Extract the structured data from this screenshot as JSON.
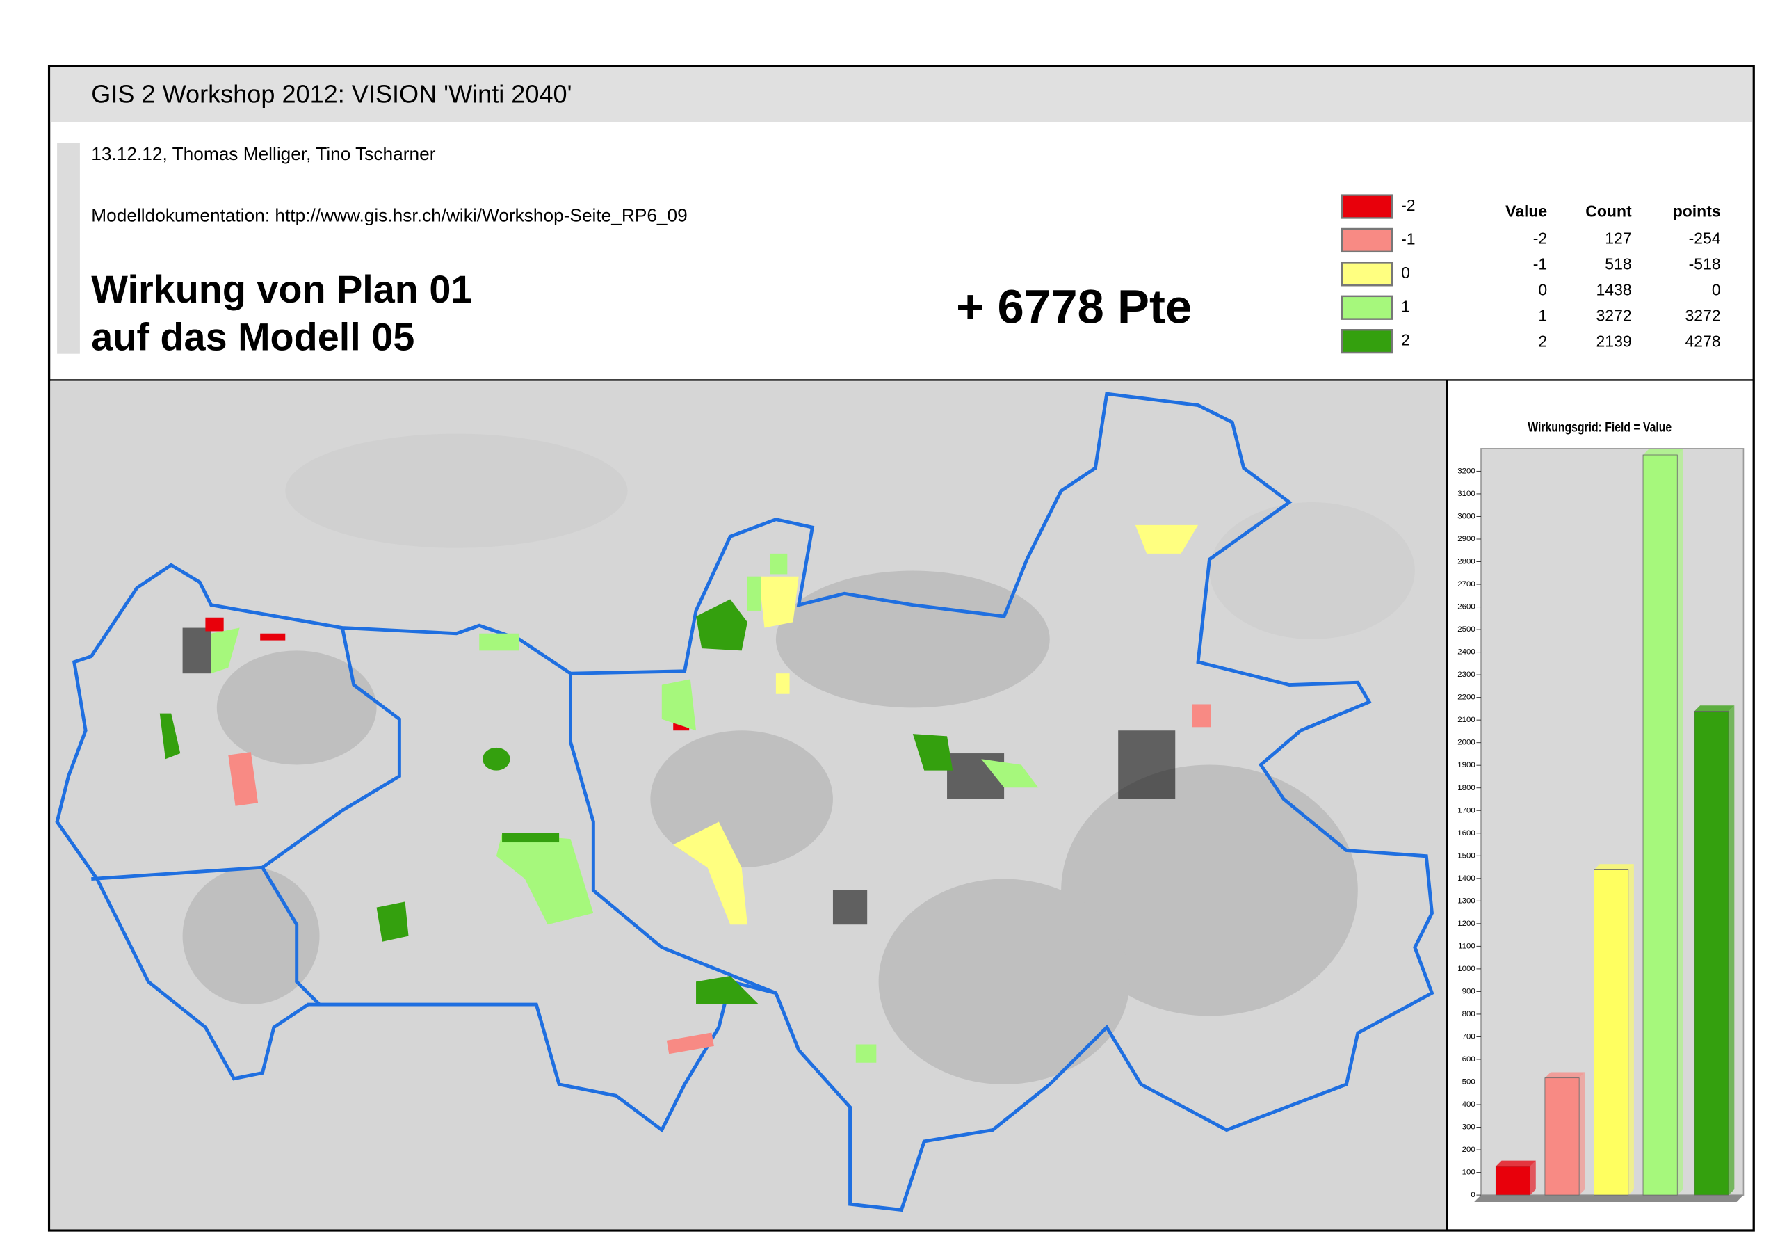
{
  "header": {
    "title": "GIS 2 Workshop 2012: VISION 'Winti 2040'",
    "authors": "13.12.12, Thomas Melliger, Tino Tscharner",
    "documentation": "Modelldokumentation: http://www.gis.hsr.ch/wiki/Workshop-Seite_RP6_09",
    "heading": [
      "Wirkung von Plan 01",
      "auf das Modell 05"
    ],
    "score": "+ 6778 Pte"
  },
  "legend": [
    {
      "label": "-2",
      "color": "#e8000b"
    },
    {
      "label": "-1",
      "color": "#f88a84"
    },
    {
      "label": "0",
      "color": "#ffff80"
    },
    {
      "label": "1",
      "color": "#a6f87c"
    },
    {
      "label": "2",
      "color": "#34a00e"
    }
  ],
  "table": {
    "columns": [
      "Value",
      "Count",
      "points"
    ],
    "rows": [
      [
        -2,
        127,
        -254
      ],
      [
        -1,
        518,
        -518
      ],
      [
        0,
        1438,
        0
      ],
      [
        1,
        3272,
        3272
      ],
      [
        2,
        2139,
        4278
      ]
    ]
  },
  "chart_data": {
    "type": "bar",
    "title": "Wirkungsgrid: Field = Value",
    "categories": [
      null,
      null,
      null,
      null,
      null
    ],
    "values": [
      127,
      518,
      1438,
      3272,
      2139
    ],
    "colors": [
      "#e8000b",
      "#f88a84",
      "#ffff60",
      "#a6f87c",
      "#34a00e"
    ],
    "ylim": [
      0,
      3300
    ],
    "yticks": [
      0,
      100,
      200,
      300,
      400,
      500,
      600,
      700,
      800,
      900,
      1000,
      1100,
      1200,
      1300,
      1400,
      1500,
      1600,
      1700,
      1800,
      1900,
      2000,
      2100,
      2200,
      2300,
      2400,
      2500,
      2600,
      2700,
      2800,
      2900,
      3000,
      3100,
      3200
    ],
    "grid": false
  }
}
